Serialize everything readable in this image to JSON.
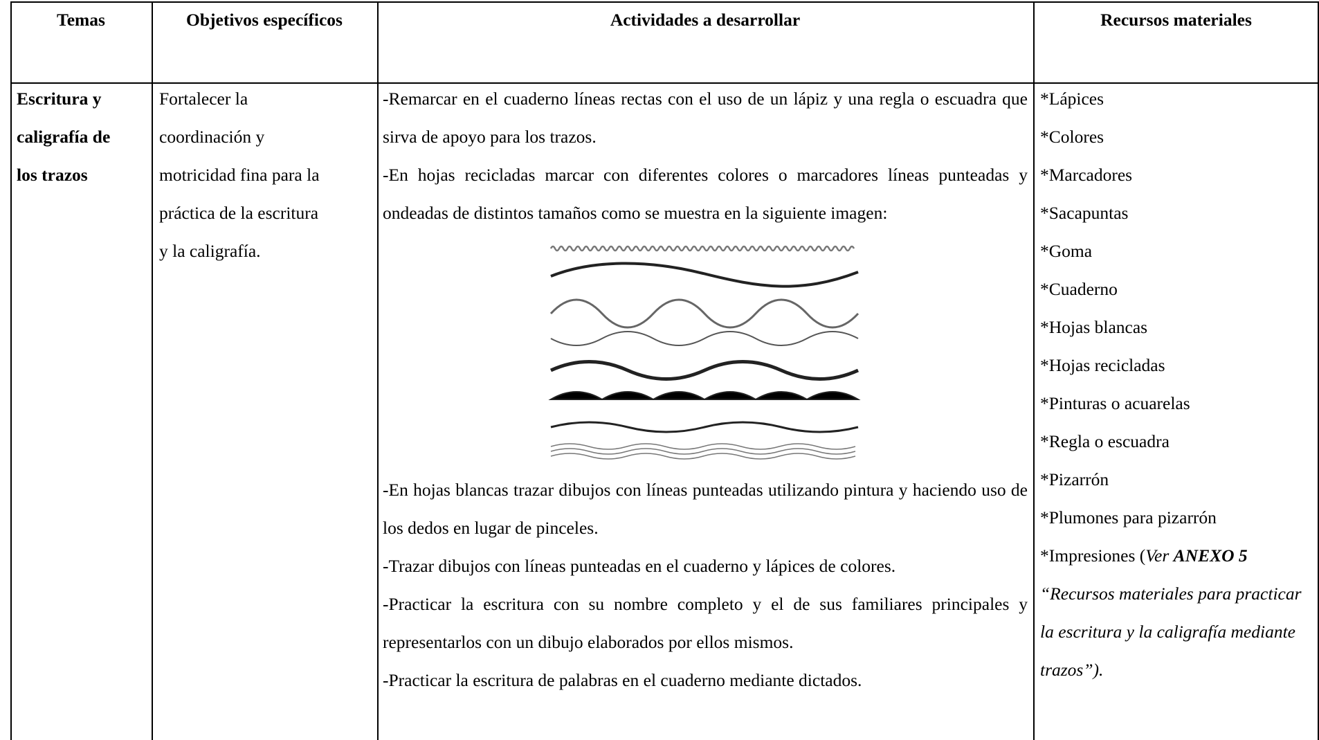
{
  "header": {
    "columns": [
      "Temas",
      "Objetivos específicos",
      "Actividades a desarrollar",
      "Recursos materiales"
    ]
  },
  "row": {
    "tema": [
      "Escritura y",
      "caligrafía de",
      "los trazos"
    ],
    "objetivo": [
      "Fortalecer la",
      "coordinación y",
      "motricidad fina para la",
      "práctica de la escritura",
      "y la caligrafía."
    ],
    "actividades_before": [
      "-Remarcar en el cuaderno líneas rectas con el uso de un lápiz y una regla o escuadra que sirva de apoyo para los trazos.",
      "-En hojas recicladas marcar con diferentes colores o marcadores líneas punteadas y ondeadas de distintos tamaños como se muestra en la siguiente imagen:"
    ],
    "actividades_after": [
      "-En hojas blancas trazar dibujos con líneas punteadas utilizando pintura y haciendo uso de los dedos en lugar de pinceles.",
      "-Trazar dibujos con líneas punteadas en el cuaderno y lápices de colores.",
      "-Practicar la escritura con su nombre completo y el de sus familiares principales y representarlos con un dibujo elaborados por ellos mismos.",
      "-Practicar la escritura de palabras en el cuaderno mediante dictados."
    ],
    "recursos": [
      "*Lápices",
      "*Colores",
      "*Marcadores",
      "*Sacapuntas",
      "*Goma",
      "*Cuaderno",
      "*Hojas blancas",
      "*Hojas recicladas",
      "*Pinturas o acuarelas",
      "*Regla o escuadra",
      "*Pizarrón",
      "*Plumones para pizarrón"
    ],
    "recurso_final": [
      "*Impresiones (",
      "Ver ",
      "ANEXO 5",
      " “Recursos materiales para practicar la escritura y la caligrafía mediante trazos”)."
    ]
  }
}
